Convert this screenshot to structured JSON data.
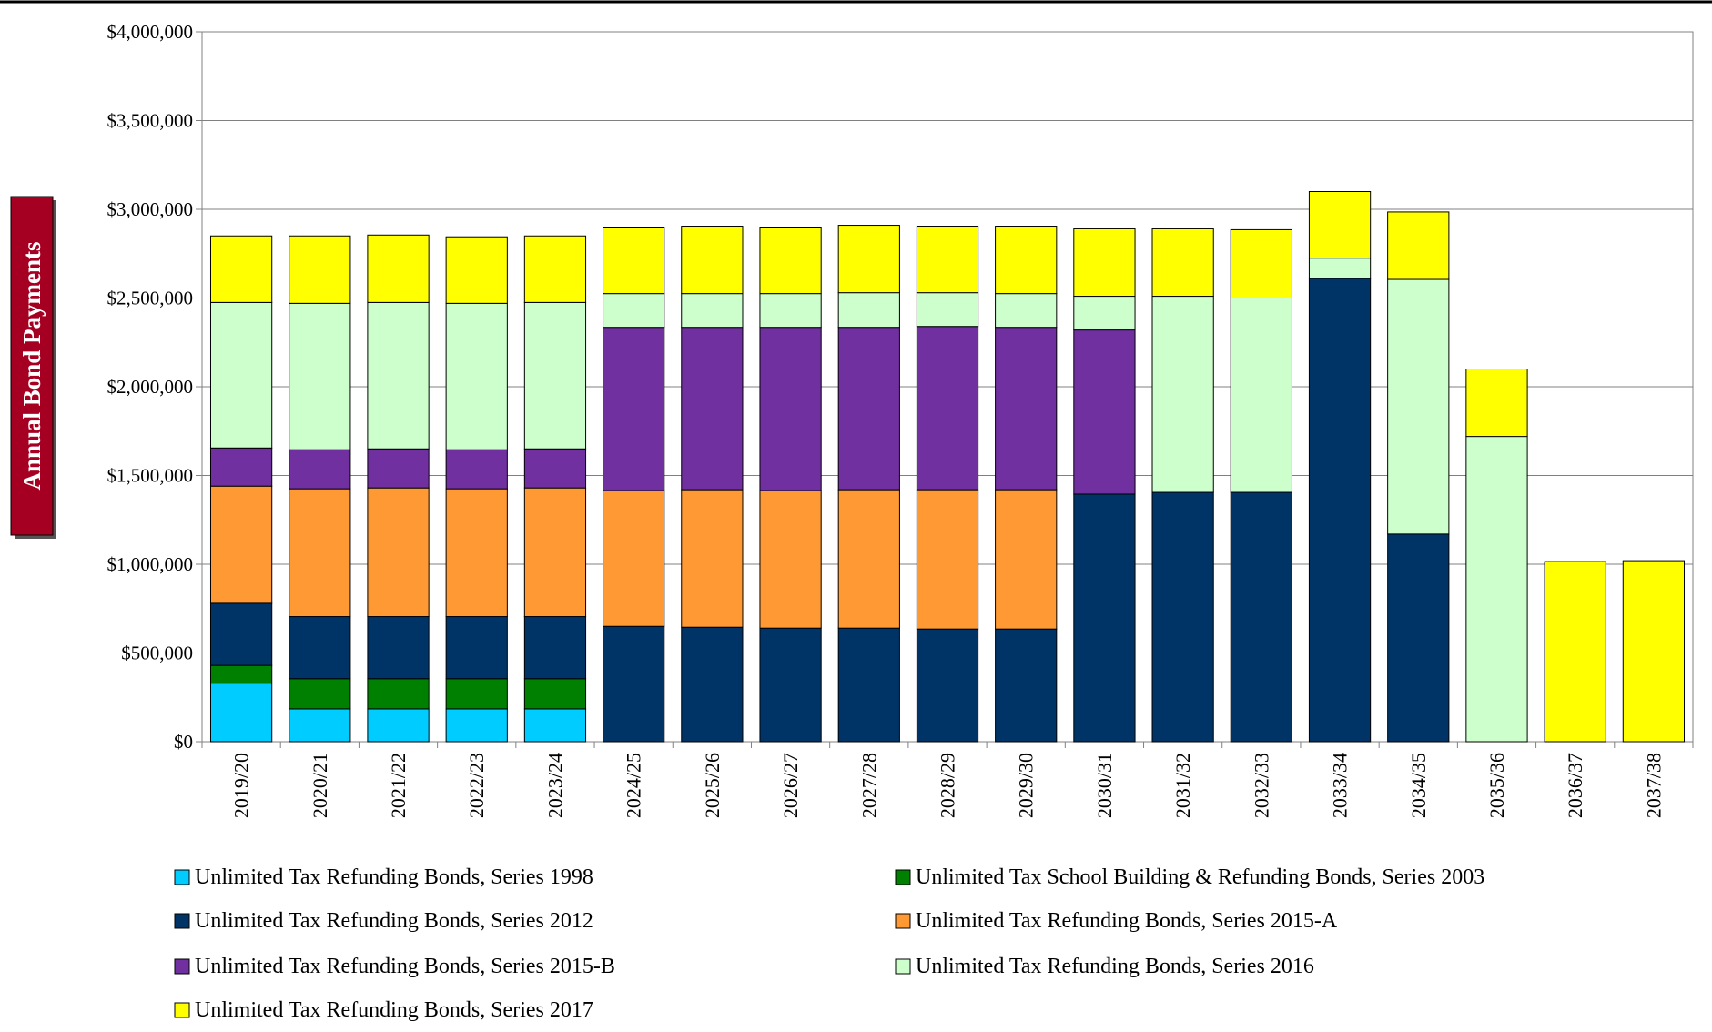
{
  "chart_data": {
    "type": "stacked_bar",
    "y_axis_label": "Annual Bond Payments",
    "categories": [
      "2019/20",
      "2020/21",
      "2021/22",
      "2022/23",
      "2023/24",
      "2024/25",
      "2025/26",
      "2026/27",
      "2027/28",
      "2028/29",
      "2029/30",
      "2030/31",
      "2031/32",
      "2032/33",
      "2033/34",
      "2034/35",
      "2035/36",
      "2036/37",
      "2037/38"
    ],
    "series": [
      {
        "name": "Unlimited Tax Refunding Bonds, Series 1998",
        "color": "#00ccff",
        "values": [
          330000,
          185000,
          185000,
          185000,
          185000,
          null,
          null,
          null,
          null,
          null,
          null,
          null,
          null,
          null,
          null,
          null,
          null,
          null,
          null
        ]
      },
      {
        "name": "Unlimited Tax School Building & Refunding Bonds, Series 2003",
        "color": "#008000",
        "values": [
          100000,
          170000,
          170000,
          170000,
          170000,
          null,
          null,
          null,
          null,
          null,
          null,
          null,
          null,
          null,
          null,
          null,
          null,
          null,
          null
        ]
      },
      {
        "name": "Unlimited Tax Refunding Bonds, Series 2012",
        "color": "#003366",
        "values": [
          350000,
          350000,
          350000,
          350000,
          350000,
          650000,
          645000,
          640000,
          640000,
          635000,
          635000,
          1395000,
          1405000,
          1405000,
          2610000,
          1170000,
          null,
          null,
          null
        ]
      },
      {
        "name": "Unlimited Tax Refunding Bonds, Series 2015-A",
        "color": "#ff9933",
        "values": [
          660000,
          720000,
          725000,
          720000,
          725000,
          765000,
          775000,
          775000,
          780000,
          785000,
          785000,
          null,
          null,
          null,
          null,
          null,
          null,
          null,
          null
        ]
      },
      {
        "name": "Unlimited Tax Refunding Bonds, Series 2015-B",
        "color": "#7030a0",
        "values": [
          215000,
          220000,
          220000,
          220000,
          220000,
          920000,
          915000,
          920000,
          915000,
          920000,
          915000,
          925000,
          null,
          null,
          null,
          null,
          null,
          null,
          null
        ]
      },
      {
        "name": "Unlimited Tax Refunding Bonds, Series 2016",
        "color": "#ccffcc",
        "values": [
          820000,
          825000,
          825000,
          825000,
          825000,
          190000,
          190000,
          190000,
          195000,
          190000,
          190000,
          190000,
          1105000,
          1095000,
          115000,
          1435000,
          1720000,
          null,
          null
        ]
      },
      {
        "name": "Unlimited Tax Refunding Bonds, Series 2017",
        "color": "#ffff00",
        "values": [
          375000,
          380000,
          380000,
          375000,
          375000,
          375000,
          380000,
          375000,
          380000,
          375000,
          380000,
          380000,
          380000,
          385000,
          375000,
          380000,
          380000,
          1015000,
          1020000
        ]
      }
    ],
    "ylim": [
      0,
      4000000
    ],
    "yticks": [
      {
        "value": 0,
        "label": "$0"
      },
      {
        "value": 500000,
        "label": "$500,000"
      },
      {
        "value": 1000000,
        "label": "$1,000,000"
      },
      {
        "value": 1500000,
        "label": "$1,500,000"
      },
      {
        "value": 2000000,
        "label": "$2,000,000"
      },
      {
        "value": 2500000,
        "label": "$2,500,000"
      },
      {
        "value": 3000000,
        "label": "$3,000,000"
      },
      {
        "value": 3500000,
        "label": "$3,500,000"
      },
      {
        "value": 4000000,
        "label": "$4,000,000"
      }
    ],
    "grid": true
  }
}
